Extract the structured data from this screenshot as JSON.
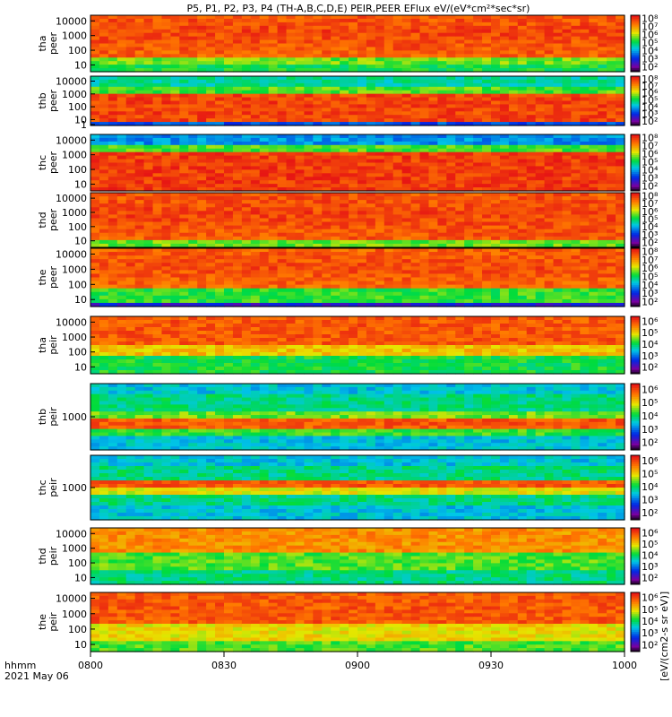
{
  "title": "P5, P1, P2, P3, P4 (TH-A,B,C,D,E) PEIR,PEER EFlux eV/(eV*cm²*sec*sr)",
  "x_label": "hhmm",
  "date_label": "2021 May 06",
  "x_ticks": [
    "0800",
    "0830",
    "0900",
    "0930",
    "1000"
  ],
  "colorbar_units": "[eV/(cm2-s sr eV)]",
  "colorbar_ticks_8": [
    "10²",
    "10³",
    "10⁴",
    "10⁵",
    "10⁶",
    "10⁷",
    "10⁸"
  ],
  "colorbar_ticks_6": [
    "10²",
    "10³",
    "10⁴",
    "10⁵",
    "10⁶"
  ],
  "chart_data": [
    {
      "type": "heatmap",
      "label_top": "tha",
      "label_bottom": "peer",
      "y_ticks": [
        "10",
        "100",
        "1000",
        "10000"
      ],
      "colorbar": "8",
      "profile": "peer_a"
    },
    {
      "type": "heatmap",
      "label_top": "thb",
      "label_bottom": "peer",
      "y_ticks": [
        "1",
        "10",
        "100",
        "1000",
        "10000"
      ],
      "colorbar": "8",
      "profile": "peer_b"
    },
    {
      "type": "heatmap",
      "label_top": "thc",
      "label_bottom": "peer",
      "y_ticks": [
        "10",
        "100",
        "1000",
        "10000"
      ],
      "colorbar": "8",
      "profile": "peer_c"
    },
    {
      "type": "heatmap",
      "label_top": "thd",
      "label_bottom": "peer",
      "y_ticks": [
        "10",
        "100",
        "1000",
        "10000"
      ],
      "colorbar": "8",
      "profile": "peer_d"
    },
    {
      "type": "heatmap",
      "label_top": "the",
      "label_bottom": "peer",
      "y_ticks": [
        "10",
        "100",
        "1000",
        "10000"
      ],
      "colorbar": "8",
      "profile": "peer_e"
    },
    {
      "type": "heatmap",
      "label_top": "tha",
      "label_bottom": "peir",
      "y_ticks": [
        "10",
        "100",
        "1000",
        "10000"
      ],
      "colorbar": "6",
      "profile": "peir_a"
    },
    {
      "type": "heatmap",
      "label_top": "thb",
      "label_bottom": "peir",
      "y_ticks": [
        "1000"
      ],
      "colorbar": "6",
      "profile": "peir_b"
    },
    {
      "type": "heatmap",
      "label_top": "thc",
      "label_bottom": "peir",
      "y_ticks": [
        "1000"
      ],
      "colorbar": "6",
      "profile": "peir_c"
    },
    {
      "type": "heatmap",
      "label_top": "thd",
      "label_bottom": "peir",
      "y_ticks": [
        "10",
        "100",
        "1000",
        "10000"
      ],
      "colorbar": "6",
      "profile": "peir_d"
    },
    {
      "type": "heatmap",
      "label_top": "the",
      "label_bottom": "peir",
      "y_ticks": [
        "10",
        "100",
        "1000",
        "10000"
      ],
      "colorbar": "6",
      "profile": "peir_e"
    }
  ]
}
